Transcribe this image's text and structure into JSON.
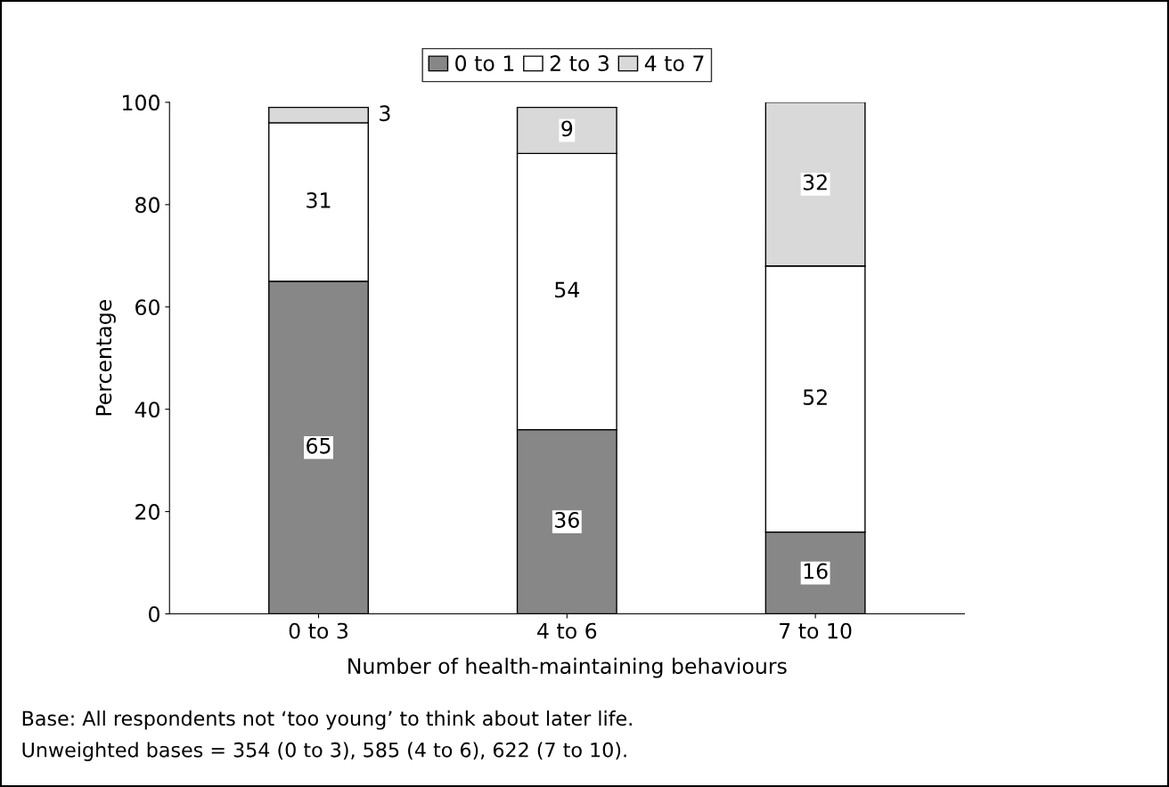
{
  "chart_data": {
    "type": "bar",
    "stacked": true,
    "xlabel": "Number of health-maintaining behaviours",
    "ylabel": "Percentage",
    "categories": [
      "0 to 3",
      "4 to 6",
      "7 to 10"
    ],
    "series": [
      {
        "name": "0 to 1",
        "color": "#878787",
        "values": [
          65,
          36,
          16
        ]
      },
      {
        "name": "2 to 3",
        "color": "#ffffff",
        "values": [
          31,
          54,
          52
        ]
      },
      {
        "name": "4 to 7",
        "color": "#d9d9d9",
        "values": [
          3,
          9,
          32
        ]
      }
    ],
    "ylim": [
      0,
      100
    ],
    "yticks": [
      0,
      20,
      40,
      60,
      80,
      100
    ],
    "data_labels": true,
    "legend": "top",
    "grid": false,
    "annotations": [
      "Base: All respondents not ‘too young’ to think about later life.",
      "Unweighted bases = 354 (0 to 3), 585 (4 to 6), 622 (7 to 10)."
    ]
  }
}
